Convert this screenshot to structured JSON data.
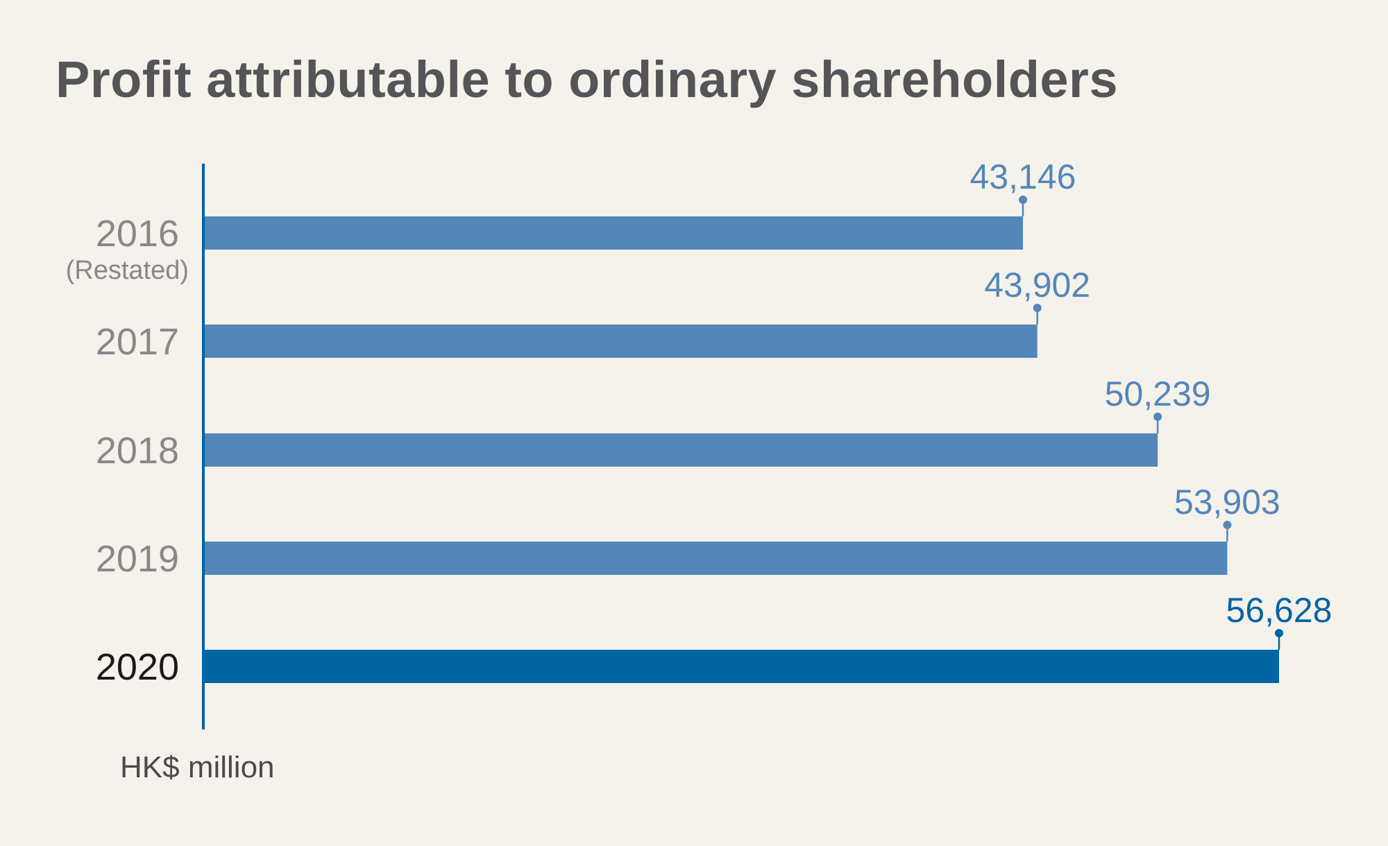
{
  "chart_data": {
    "type": "bar",
    "orientation": "horizontal",
    "title": "Profit attributable to ordinary shareholders",
    "unit_label": "HK$ million",
    "categories": [
      "2016",
      "2017",
      "2018",
      "2019",
      "2020"
    ],
    "category_notes": [
      "(Restated)",
      "",
      "",
      "",
      ""
    ],
    "values": [
      43146,
      43902,
      50239,
      53903,
      56628
    ],
    "value_labels": [
      "43,146",
      "43,902",
      "50,239",
      "53,903",
      "56,628"
    ],
    "highlight_index": 4,
    "grid": false,
    "legend": "none"
  },
  "colors": {
    "background": "#f5f1eb",
    "bar": "#5387b9",
    "bar_highlight": "#0065a2",
    "label": "#888888",
    "label_highlight": "#1a1a1a",
    "value_label": "#5387b9",
    "value_label_highlight": "#0065a2",
    "axis": "#0065a2",
    "title": "#555557"
  }
}
